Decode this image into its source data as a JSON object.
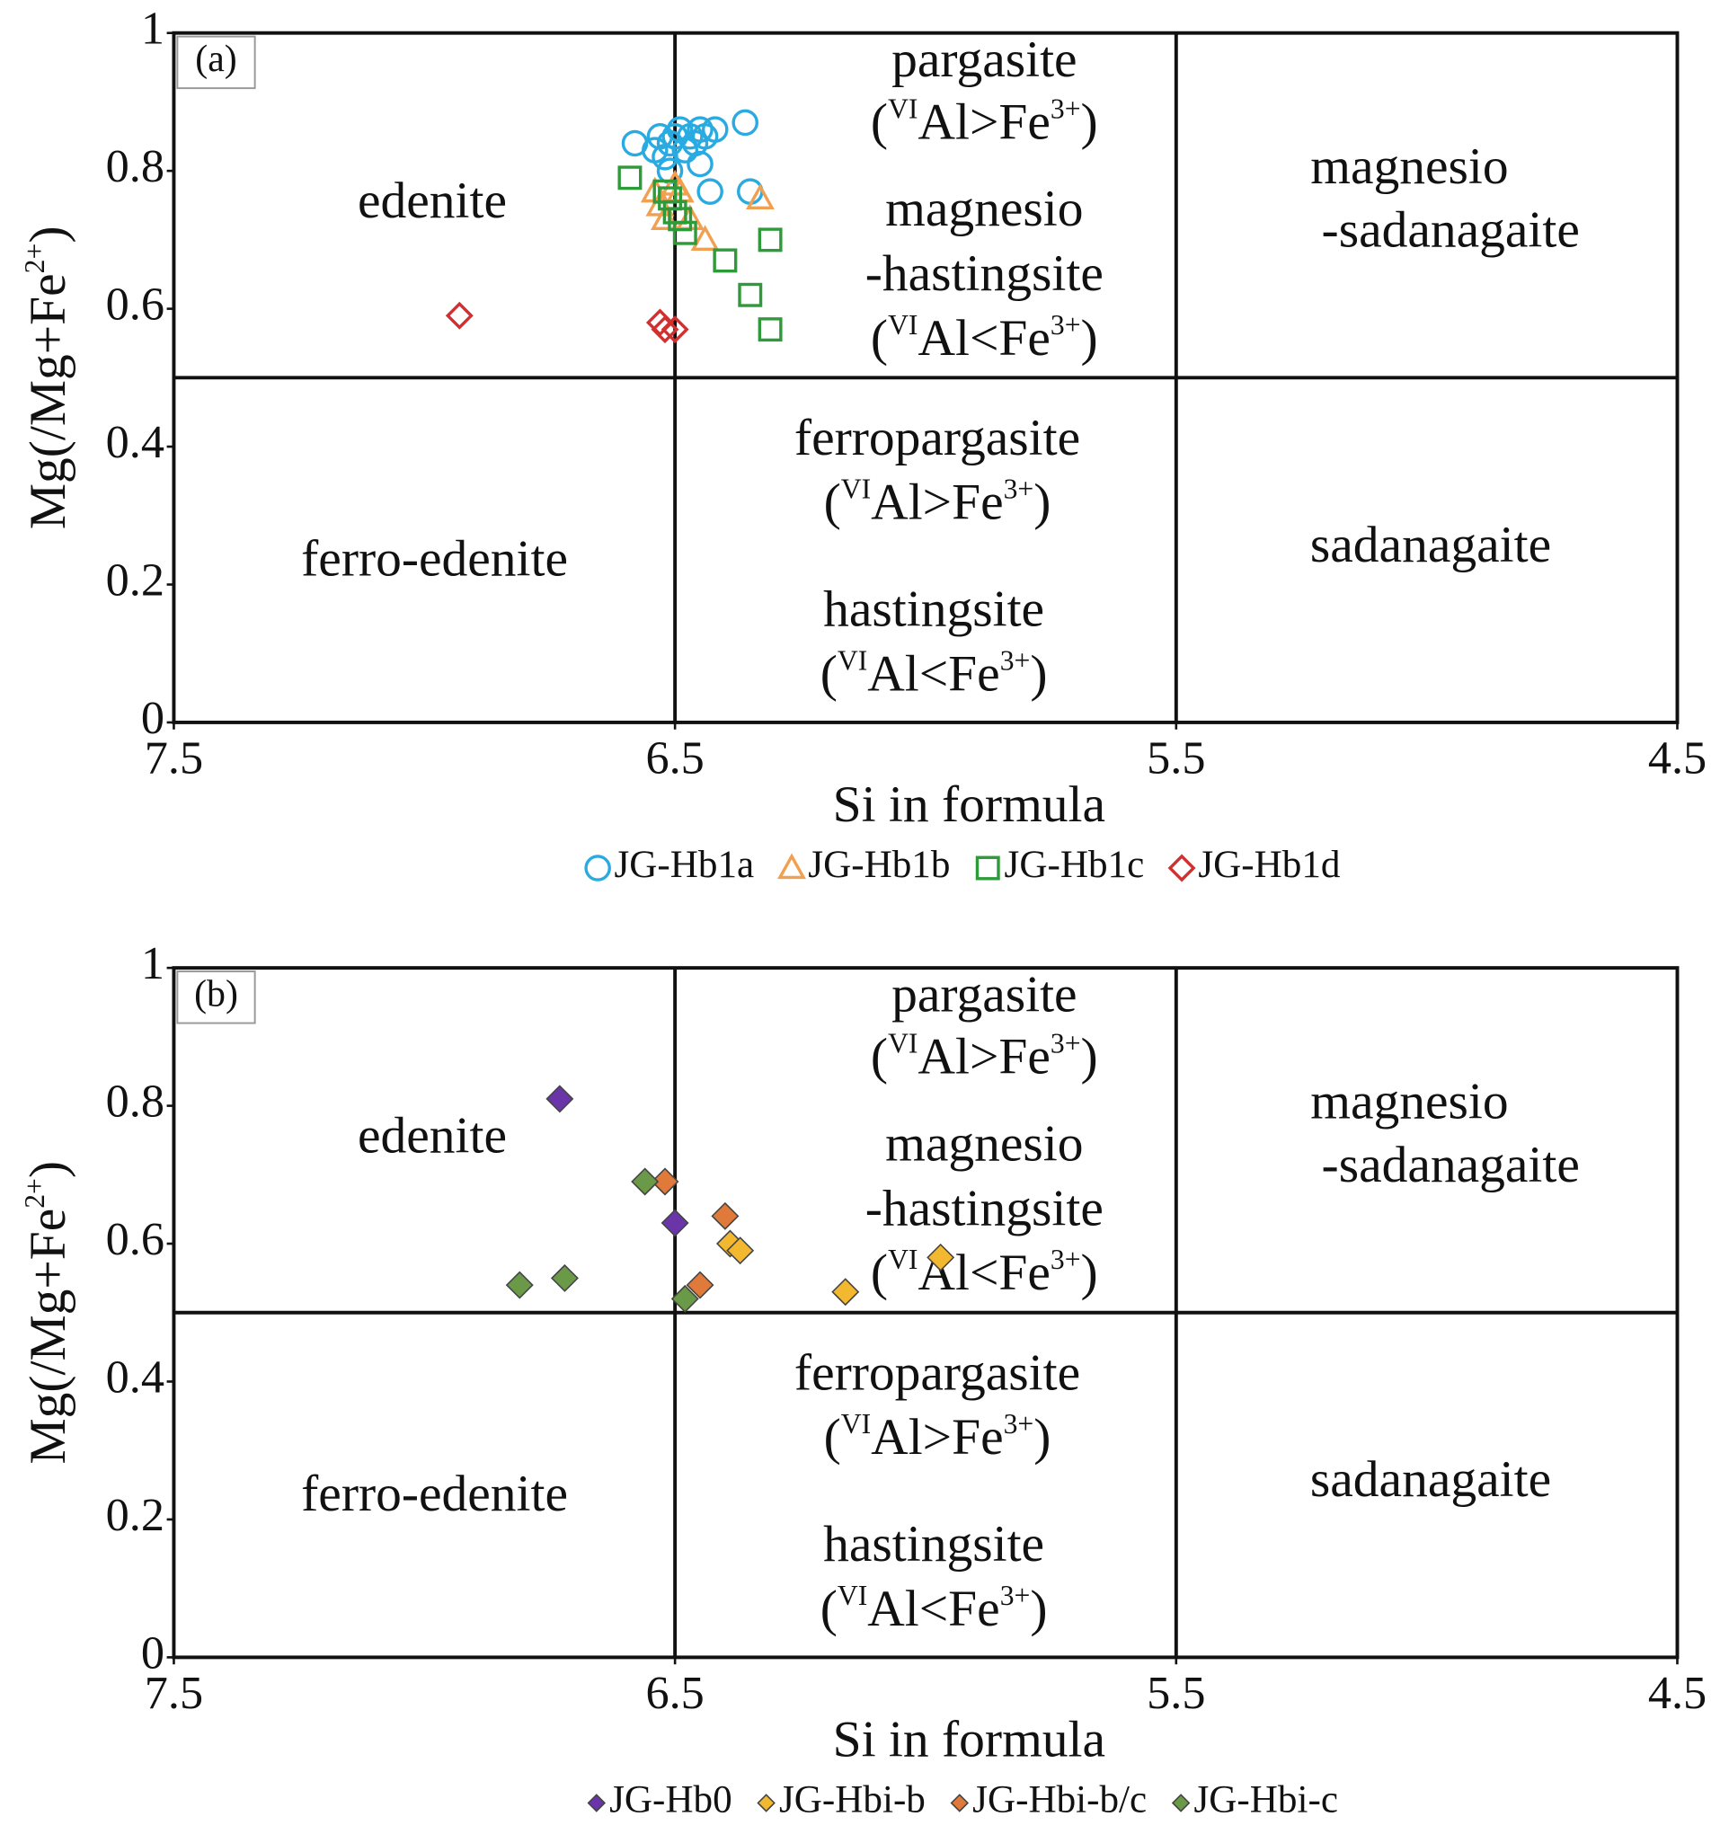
{
  "chart_data": [
    {
      "type": "scatter",
      "panel_label": "(a)",
      "x_label": "Si in formula",
      "y_label": [
        "Mg(/Mg+Fe",
        {
          "sup": "2+"
        },
        ")"
      ],
      "xlim": [
        7.5,
        4.5
      ],
      "ylim": [
        0,
        1
      ],
      "xticks": [
        7.5,
        6.5,
        5.5,
        4.5
      ],
      "yticks": [
        0,
        0.2,
        0.4,
        0.6,
        0.8,
        1
      ],
      "dividers": {
        "x": [
          6.5,
          5.5
        ],
        "y": [
          0.5
        ]
      },
      "regions": [
        {
          "lines": [
            [
              "edenite"
            ]
          ]
        },
        {
          "lines": [
            [
              "ferro-edenite"
            ]
          ]
        },
        {
          "lines": [
            [
              "pargasite"
            ],
            [
              "(",
              {
                "sup": "VI"
              },
              "Al>Fe",
              {
                "sup": "3+"
              },
              ")"
            ],
            [
              "magnesio"
            ],
            [
              "-hastingsite"
            ],
            [
              "(",
              {
                "sup": "VI"
              },
              "Al<Fe",
              {
                "sup": "3+"
              },
              ")"
            ]
          ]
        },
        {
          "lines": [
            [
              "ferropargasite"
            ],
            [
              "(",
              {
                "sup": "VI"
              },
              "Al>Fe",
              {
                "sup": "3+"
              },
              ")"
            ]
          ]
        },
        {
          "lines": [
            [
              "hastingsite"
            ],
            [
              "(",
              {
                "sup": "VI"
              },
              "Al<Fe",
              {
                "sup": "3+"
              },
              ")"
            ]
          ]
        },
        {
          "lines": [
            [
              "magnesio"
            ],
            [
              "-sadanagaite"
            ]
          ]
        },
        {
          "lines": [
            [
              "sadanagaite"
            ]
          ]
        }
      ],
      "series": [
        {
          "name": "JG-Hb1a",
          "color": "#29abe2",
          "marker": "circle",
          "filled": false,
          "x": [
            6.58,
            6.54,
            6.53,
            6.52,
            6.51,
            6.5,
            6.49,
            6.48,
            6.47,
            6.46,
            6.45,
            6.44,
            6.42,
            6.36,
            6.45,
            6.43,
            6.35,
            6.51
          ],
          "y": [
            0.84,
            0.83,
            0.85,
            0.82,
            0.84,
            0.85,
            0.86,
            0.83,
            0.85,
            0.84,
            0.86,
            0.85,
            0.86,
            0.87,
            0.81,
            0.77,
            0.77,
            0.8
          ]
        },
        {
          "name": "JG-Hb1b",
          "color": "#f0a050",
          "marker": "triangle",
          "filled": false,
          "x": [
            6.53,
            6.52,
            6.5,
            6.49,
            6.47,
            6.44,
            6.33,
            6.54
          ],
          "y": [
            0.75,
            0.73,
            0.78,
            0.77,
            0.73,
            0.7,
            0.76,
            0.77
          ]
        },
        {
          "name": "JG-Hb1c",
          "color": "#2e9a3a",
          "marker": "square",
          "filled": false,
          "x": [
            6.59,
            6.52,
            6.5,
            6.49,
            6.48,
            6.4,
            6.35,
            6.31,
            6.31,
            6.51
          ],
          "y": [
            0.79,
            0.77,
            0.74,
            0.73,
            0.71,
            0.67,
            0.62,
            0.7,
            0.57,
            0.76
          ]
        },
        {
          "name": "JG-Hb1d",
          "color": "#d03030",
          "marker": "diamond",
          "filled": false,
          "x": [
            6.93,
            6.53,
            6.5,
            6.52
          ],
          "y": [
            0.59,
            0.58,
            0.57,
            0.57
          ]
        }
      ]
    },
    {
      "type": "scatter",
      "panel_label": "(b)",
      "x_label": "Si in formula",
      "y_label": [
        "Mg(/Mg+Fe",
        {
          "sup": "2+"
        },
        ")"
      ],
      "xlim": [
        7.5,
        4.5
      ],
      "ylim": [
        0,
        1
      ],
      "xticks": [
        7.5,
        6.5,
        5.5,
        4.5
      ],
      "yticks": [
        0,
        0.2,
        0.4,
        0.6,
        0.8,
        1
      ],
      "dividers": {
        "x": [
          6.5,
          5.5
        ],
        "y": [
          0.5
        ]
      },
      "regions": [
        {
          "lines": [
            [
              "edenite"
            ]
          ]
        },
        {
          "lines": [
            [
              "ferro-edenite"
            ]
          ]
        },
        {
          "lines": [
            [
              "pargasite"
            ],
            [
              "(",
              {
                "sup": "VI"
              },
              "Al>Fe",
              {
                "sup": "3+"
              },
              ")"
            ],
            [
              "magnesio"
            ],
            [
              "-hastingsite"
            ],
            [
              "(",
              {
                "sup": "VI"
              },
              "Al<Fe",
              {
                "sup": "3+"
              },
              ")"
            ]
          ]
        },
        {
          "lines": [
            [
              "ferropargasite"
            ],
            [
              "(",
              {
                "sup": "VI"
              },
              "Al>Fe",
              {
                "sup": "3+"
              },
              ")"
            ]
          ]
        },
        {
          "lines": [
            [
              "hastingsite"
            ],
            [
              "(",
              {
                "sup": "VI"
              },
              "Al<Fe",
              {
                "sup": "3+"
              },
              ")"
            ]
          ]
        },
        {
          "lines": [
            [
              "magnesio"
            ],
            [
              "-sadanagaite"
            ]
          ]
        },
        {
          "lines": [
            [
              "sadanagaite"
            ]
          ]
        }
      ],
      "series": [
        {
          "name": "JG-Hb0",
          "color": "#6a35a8",
          "marker": "diamond",
          "filled": true,
          "x": [
            6.73,
            6.5
          ],
          "y": [
            0.81,
            0.63
          ]
        },
        {
          "name": "JG-Hbi-b",
          "color": "#f2b830",
          "marker": "diamond",
          "filled": true,
          "x": [
            6.39,
            6.37,
            6.16,
            5.97
          ],
          "y": [
            0.6,
            0.59,
            0.53,
            0.58
          ]
        },
        {
          "name": "JG-Hbi-b/c",
          "color": "#e07a3a",
          "marker": "diamond",
          "filled": true,
          "x": [
            6.52,
            6.4,
            6.45
          ],
          "y": [
            0.69,
            0.64,
            0.54
          ]
        },
        {
          "name": "JG-Hbi-c",
          "color": "#6a9a48",
          "marker": "diamond",
          "filled": true,
          "x": [
            6.56,
            6.72,
            6.81,
            6.48
          ],
          "y": [
            0.69,
            0.55,
            0.54,
            0.52
          ]
        }
      ]
    }
  ]
}
